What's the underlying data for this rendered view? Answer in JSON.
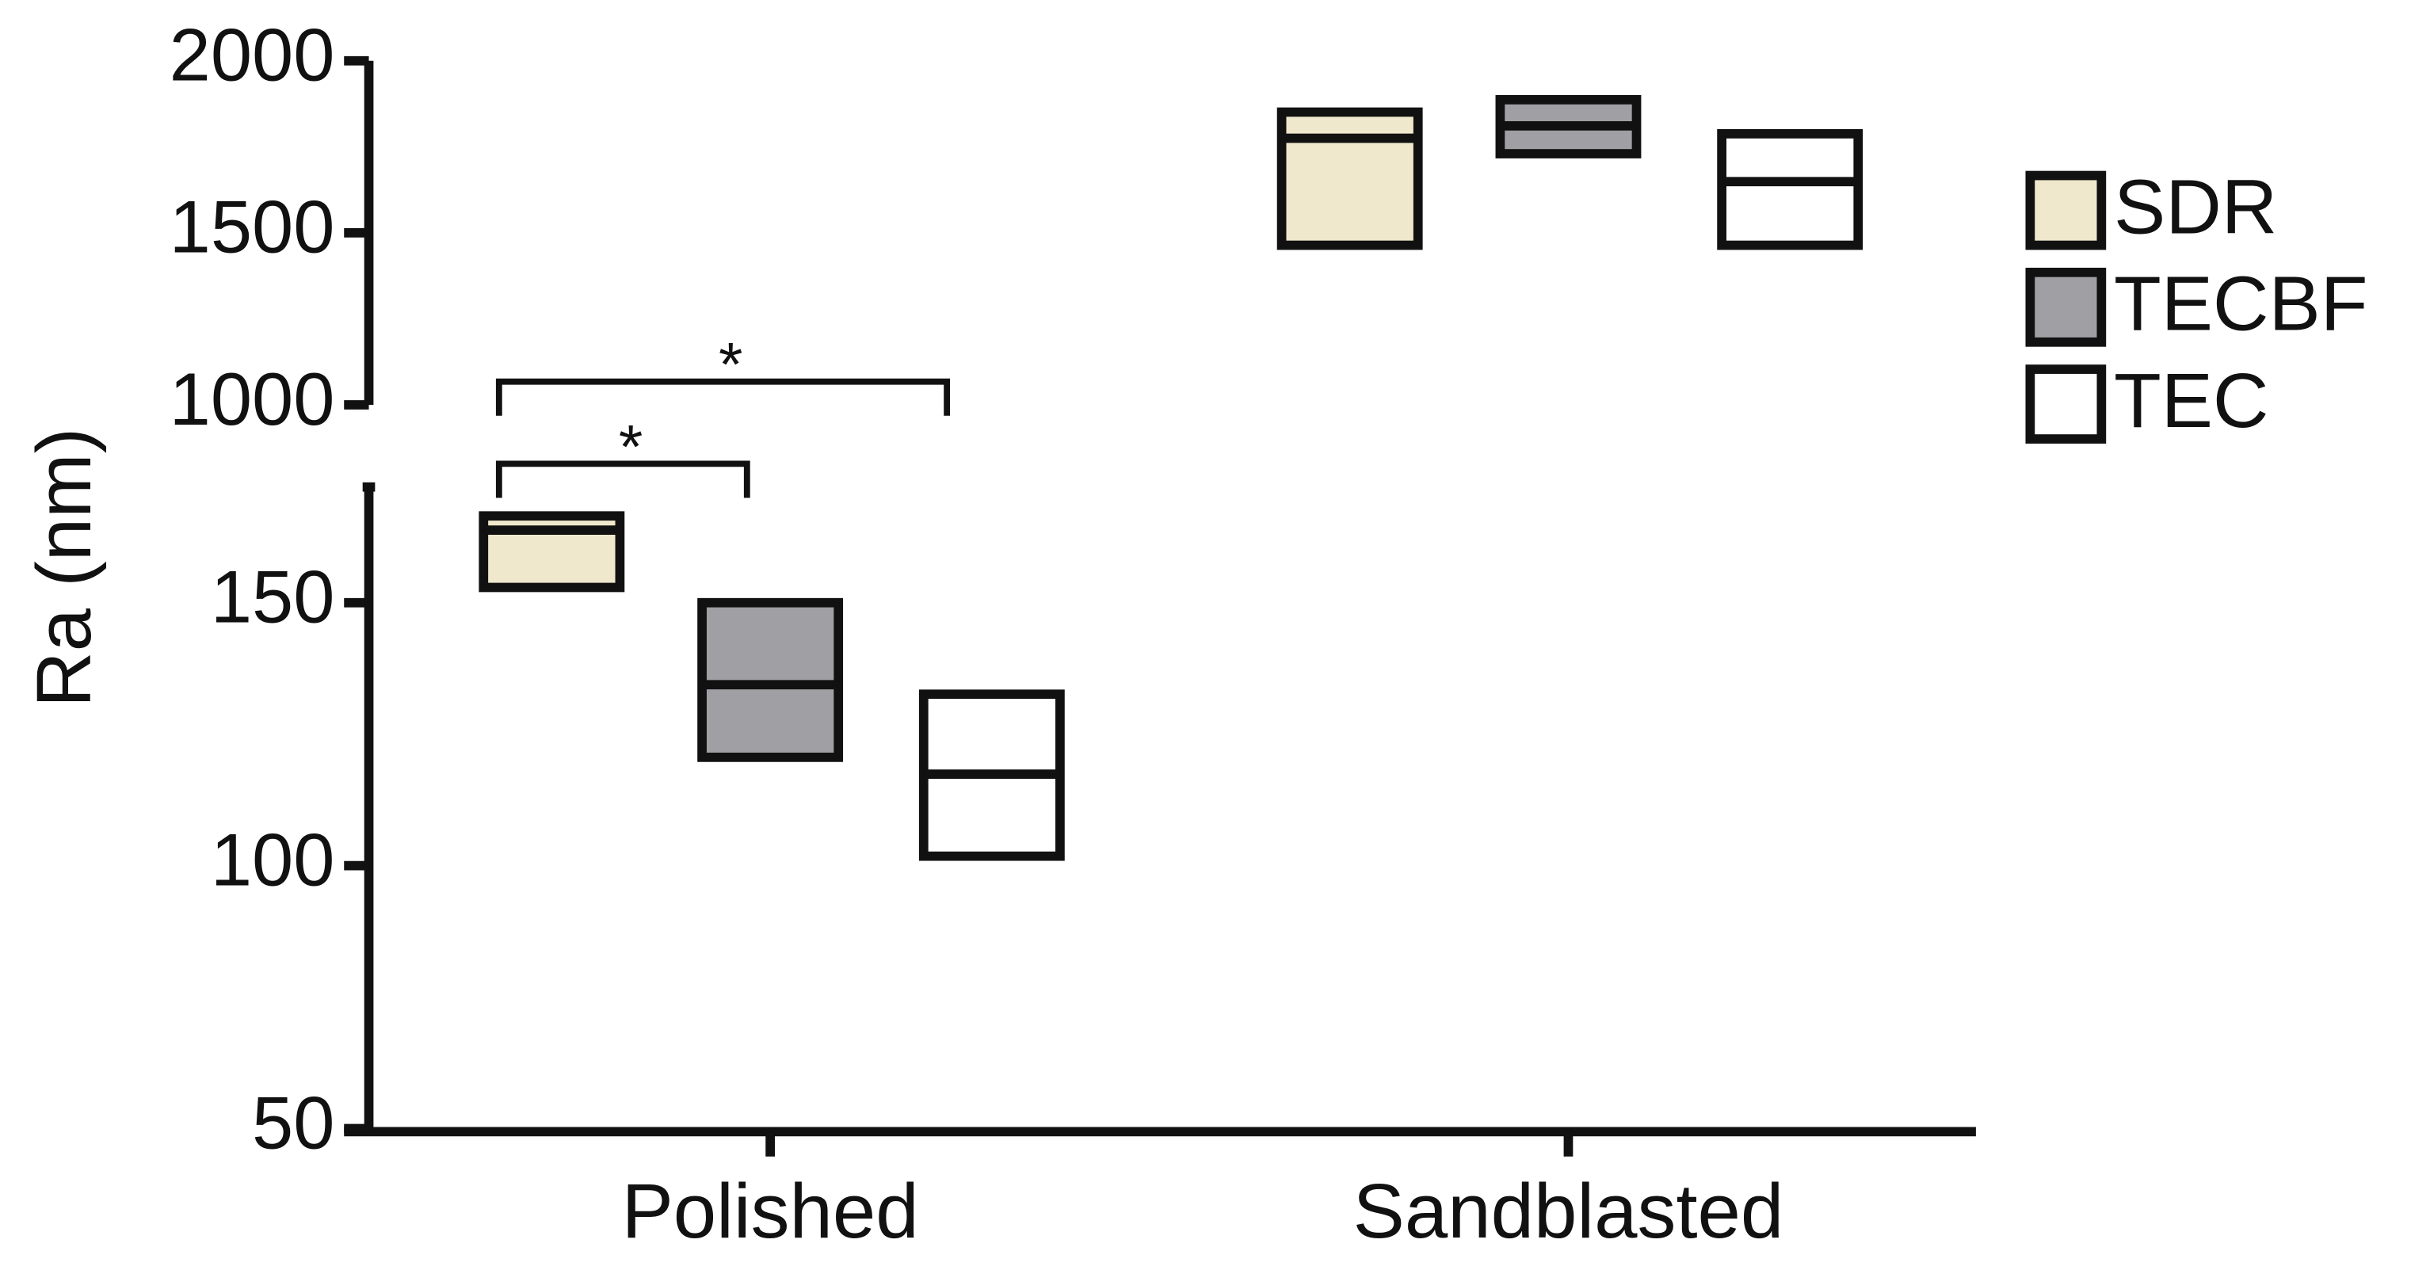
{
  "chart_data": {
    "type": "floating-bar",
    "y_label": "Ra (nm)",
    "categories": [
      "Polished",
      "Sandblasted"
    ],
    "series": [
      {
        "name": "SDR",
        "color": "#f0e8cc",
        "low": [
          152.9,
          1464
        ],
        "high": [
          166.5,
          1851
        ],
        "median": [
          163.8,
          1775
        ]
      },
      {
        "name": "TECBF",
        "color": "#a0a0a4",
        "low": [
          120.6,
          1730
        ],
        "high": [
          150,
          1887
        ],
        "median": [
          134.4,
          1811
        ]
      },
      {
        "name": "TEC",
        "color": "#ffffff",
        "low": [
          101.8,
          1464
        ],
        "high": [
          132.6,
          1788
        ],
        "median": [
          117.4,
          1649
        ]
      }
    ],
    "ylim": [
      50,
      172
    ],
    "yticks": [
      50,
      100,
      150
    ],
    "ylim_upper": [
      1000,
      2000
    ],
    "yticks_upper": [
      1000,
      1500,
      2000
    ],
    "annotations": [
      "*",
      "*"
    ],
    "grid": false
  }
}
